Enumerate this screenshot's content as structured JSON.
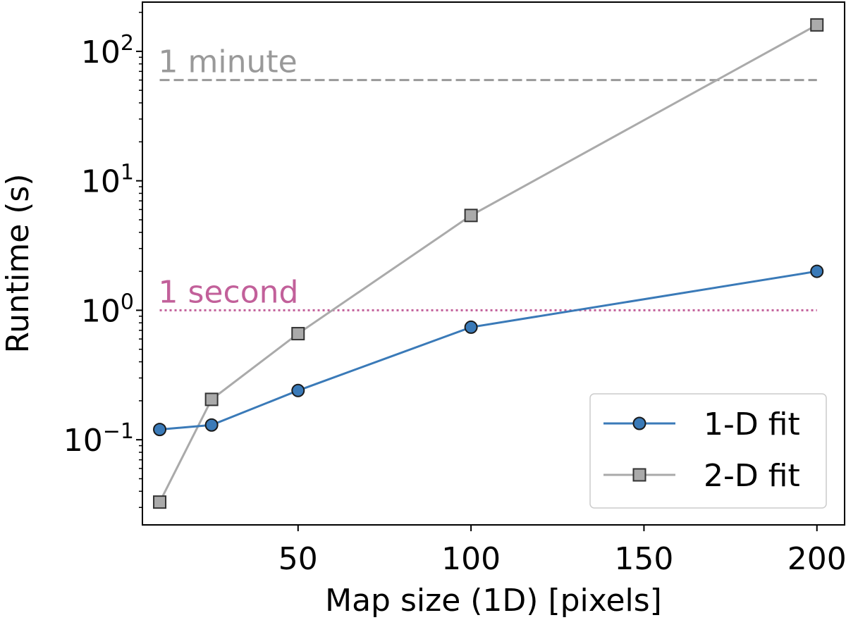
{
  "chart_data": {
    "type": "line",
    "xlabel": "Map size (1D) [pixels]",
    "ylabel": "Runtime (s)",
    "xlim": [
      5,
      208
    ],
    "ylim": [
      0.022,
      240
    ],
    "yscale": "log",
    "grid": false,
    "legend_position": "bottom-right",
    "x_ticks": [
      {
        "value": 50,
        "label": "50"
      },
      {
        "value": 100,
        "label": "100"
      },
      {
        "value": 150,
        "label": "150"
      },
      {
        "value": 200,
        "label": "200"
      }
    ],
    "y_ticks": [
      {
        "value": 0.1,
        "base": "10",
        "exp": "−1"
      },
      {
        "value": 1,
        "base": "10",
        "exp": "0"
      },
      {
        "value": 10,
        "base": "10",
        "exp": "1"
      },
      {
        "value": 100,
        "base": "10",
        "exp": "2"
      }
    ],
    "series": [
      {
        "name": "1-D fit",
        "color": "#3a7ab8",
        "marker": "circle",
        "points": [
          {
            "x": 10,
            "y": 0.12
          },
          {
            "x": 25,
            "y": 0.13
          },
          {
            "x": 50,
            "y": 0.24
          },
          {
            "x": 100,
            "y": 0.74
          },
          {
            "x": 200,
            "y": 2.0
          }
        ]
      },
      {
        "name": "2-D fit",
        "color": "#aaaaaa",
        "marker": "square",
        "points": [
          {
            "x": 10,
            "y": 0.033
          },
          {
            "x": 25,
            "y": 0.205
          },
          {
            "x": 50,
            "y": 0.66
          },
          {
            "x": 100,
            "y": 5.4
          },
          {
            "x": 200,
            "y": 160
          }
        ]
      }
    ],
    "reference_lines": [
      {
        "label": "1 minute",
        "y": 60,
        "x_start": 10,
        "x_end": 200,
        "color": "#999999",
        "style": "dashed"
      },
      {
        "label": "1 second",
        "y": 1,
        "x_start": 10,
        "x_end": 200,
        "color": "#c2609a",
        "style": "dotted"
      }
    ]
  }
}
